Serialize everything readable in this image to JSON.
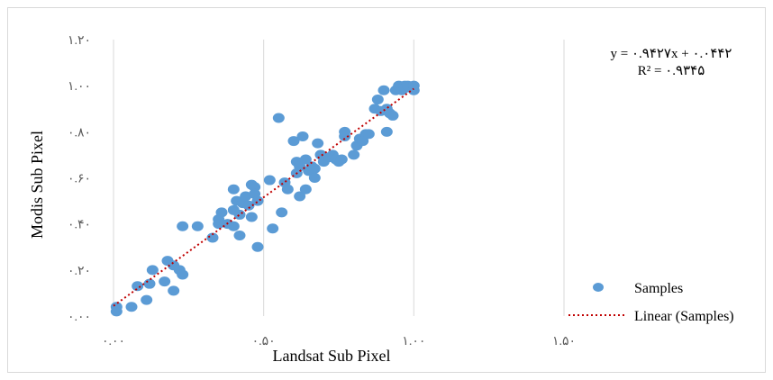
{
  "chart_data": {
    "type": "scatter",
    "xlabel": "Landsat Sub Pixel",
    "ylabel": "Modis Sub Pixel",
    "xlim": [
      0,
      1.5
    ],
    "ylim": [
      0,
      1.2
    ],
    "x_ticks": [
      0,
      0.5,
      1.0,
      1.5
    ],
    "y_ticks": [
      0,
      0.2,
      0.4,
      0.6,
      0.8,
      1.0,
      1.2
    ],
    "x_tick_labels": [
      "۰.۰۰",
      "۰.۵۰",
      "۱.۰۰",
      "۱.۵۰"
    ],
    "y_tick_labels": [
      "۰.۰۰",
      "۰.۲۰",
      "۰.۴۰",
      "۰.۶۰",
      "۰.۸۰",
      "۱.۰۰",
      "۱.۲۰"
    ],
    "grid": "vertical",
    "legend_position": "right",
    "equation": "y = ۰.۹۴۲۷x + ۰.۰۴۴۲",
    "r_squared": "R² = ۰.۹۳۴۵",
    "colors": {
      "marker": "#5b9bd5",
      "trendline": "#c00000",
      "grid": "#d9d9d9"
    },
    "series": [
      {
        "name": "Samples",
        "points": [
          [
            0.01,
            0.02
          ],
          [
            0.01,
            0.04
          ],
          [
            0.06,
            0.04
          ],
          [
            0.08,
            0.13
          ],
          [
            0.11,
            0.07
          ],
          [
            0.12,
            0.14
          ],
          [
            0.13,
            0.2
          ],
          [
            0.17,
            0.15
          ],
          [
            0.18,
            0.24
          ],
          [
            0.2,
            0.11
          ],
          [
            0.2,
            0.22
          ],
          [
            0.22,
            0.2
          ],
          [
            0.23,
            0.18
          ],
          [
            0.23,
            0.39
          ],
          [
            0.28,
            0.39
          ],
          [
            0.33,
            0.34
          ],
          [
            0.35,
            0.42
          ],
          [
            0.35,
            0.4
          ],
          [
            0.36,
            0.45
          ],
          [
            0.38,
            0.4
          ],
          [
            0.4,
            0.39
          ],
          [
            0.4,
            0.46
          ],
          [
            0.4,
            0.55
          ],
          [
            0.41,
            0.5
          ],
          [
            0.42,
            0.44
          ],
          [
            0.42,
            0.35
          ],
          [
            0.43,
            0.49
          ],
          [
            0.44,
            0.52
          ],
          [
            0.45,
            0.48
          ],
          [
            0.46,
            0.57
          ],
          [
            0.46,
            0.43
          ],
          [
            0.47,
            0.56
          ],
          [
            0.47,
            0.53
          ],
          [
            0.48,
            0.3
          ],
          [
            0.48,
            0.5
          ],
          [
            0.52,
            0.59
          ],
          [
            0.53,
            0.38
          ],
          [
            0.55,
            0.86
          ],
          [
            0.56,
            0.45
          ],
          [
            0.57,
            0.58
          ],
          [
            0.58,
            0.55
          ],
          [
            0.6,
            0.76
          ],
          [
            0.61,
            0.62
          ],
          [
            0.61,
            0.67
          ],
          [
            0.62,
            0.52
          ],
          [
            0.62,
            0.65
          ],
          [
            0.63,
            0.78
          ],
          [
            0.64,
            0.68
          ],
          [
            0.64,
            0.55
          ],
          [
            0.65,
            0.63
          ],
          [
            0.66,
            0.65
          ],
          [
            0.67,
            0.6
          ],
          [
            0.67,
            0.64
          ],
          [
            0.68,
            0.75
          ],
          [
            0.69,
            0.7
          ],
          [
            0.7,
            0.67
          ],
          [
            0.72,
            0.69
          ],
          [
            0.73,
            0.7
          ],
          [
            0.74,
            0.68
          ],
          [
            0.75,
            0.67
          ],
          [
            0.76,
            0.68
          ],
          [
            0.77,
            0.78
          ],
          [
            0.77,
            0.8
          ],
          [
            0.8,
            0.7
          ],
          [
            0.81,
            0.74
          ],
          [
            0.82,
            0.77
          ],
          [
            0.83,
            0.76
          ],
          [
            0.84,
            0.79
          ],
          [
            0.85,
            0.79
          ],
          [
            0.87,
            0.9
          ],
          [
            0.88,
            0.94
          ],
          [
            0.89,
            0.89
          ],
          [
            0.9,
            0.98
          ],
          [
            0.91,
            0.8
          ],
          [
            0.91,
            0.9
          ],
          [
            0.92,
            0.88
          ],
          [
            0.93,
            0.87
          ],
          [
            0.94,
            0.98
          ],
          [
            0.95,
            1.0
          ],
          [
            0.96,
            0.98
          ],
          [
            0.97,
            1.0
          ],
          [
            0.97,
            0.99
          ],
          [
            0.98,
            1.0
          ],
          [
            1.0,
            1.0
          ],
          [
            1.0,
            0.98
          ]
        ]
      },
      {
        "name": "Linear (Samples)",
        "fit": {
          "slope": 0.9427,
          "intercept": 0.0442,
          "x_range": [
            0,
            1.0
          ]
        }
      }
    ]
  }
}
